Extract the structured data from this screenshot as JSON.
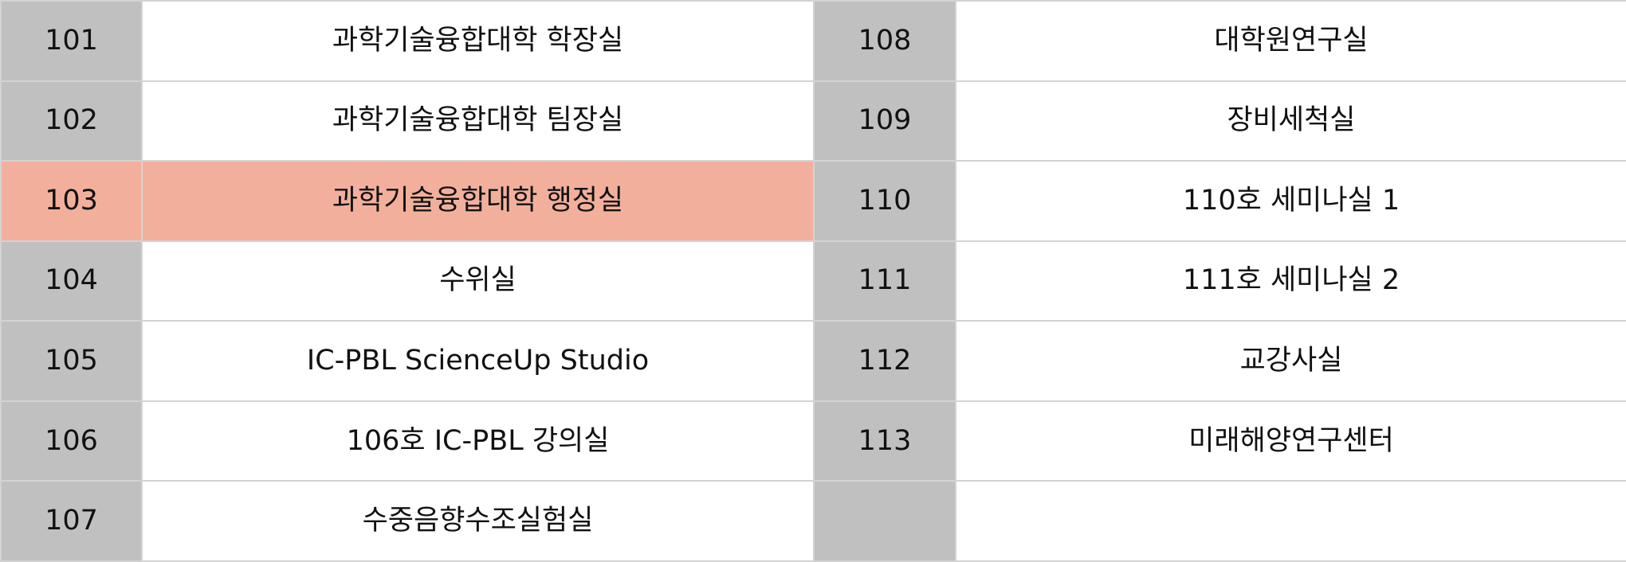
{
  "highlight_color": "#f2b09c",
  "number_cell_color": "#c0c0c0",
  "rows": [
    {
      "left": {
        "number": "101",
        "name": "과학기술융합대학 학장실"
      },
      "right": {
        "number": "108",
        "name": "대학원연구실"
      }
    },
    {
      "left": {
        "number": "102",
        "name": "과학기술융합대학 팀장실"
      },
      "right": {
        "number": "109",
        "name": "장비세척실"
      }
    },
    {
      "left": {
        "number": "103",
        "name": "과학기술융합대학 행정실",
        "highlighted": true
      },
      "right": {
        "number": "110",
        "name": "110호 세미나실 1"
      }
    },
    {
      "left": {
        "number": "104",
        "name": "수위실"
      },
      "right": {
        "number": "111",
        "name": "111호 세미나실 2"
      }
    },
    {
      "left": {
        "number": "105",
        "name": "IC-PBL ScienceUp Studio"
      },
      "right": {
        "number": "112",
        "name": "교강사실"
      }
    },
    {
      "left": {
        "number": "106",
        "name": "106호 IC-PBL 강의실"
      },
      "right": {
        "number": "113",
        "name": "미래해양연구센터"
      }
    },
    {
      "left": {
        "number": "107",
        "name": "수중음향수조실험실"
      },
      "right": {
        "number": "",
        "name": ""
      }
    }
  ]
}
